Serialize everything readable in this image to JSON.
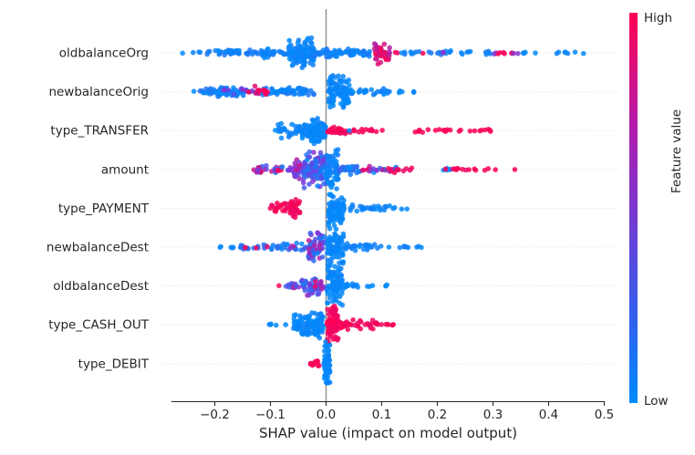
{
  "chart_data": {
    "type": "scatter",
    "subtype": "shap-beeswarm-summary",
    "title": "",
    "xlabel": "SHAP value (impact on model output)",
    "xticks": [
      -0.2,
      -0.1,
      0.0,
      0.1,
      0.2,
      0.3,
      0.4,
      0.5
    ],
    "xlim": [
      -0.28,
      0.5
    ],
    "zero_line_x": 0.0,
    "grid": "dotted horizontal per feature row",
    "legend_position": "colorbar right",
    "colorbar": {
      "label": "Feature value",
      "high_label": "High",
      "low_label": "Low",
      "high_color": "#ff0051",
      "low_color": "#008bfb",
      "mid_color": "#7b38de"
    },
    "style": {
      "axis_color": "#262626",
      "zero_line_color": "#8c8c8c",
      "gridline_color": "#dcdcdc",
      "dot_radius": 2.8,
      "dot_opacity": 0.85
    },
    "features": [
      {
        "name": "oldbalanceOrg",
        "clusters": [
          [
            -0.262,
            -0.255,
            1,
            0,
            0,
            1
          ],
          [
            -0.242,
            -0.224,
            3,
            0,
            0.05,
            2
          ],
          [
            -0.215,
            -0.068,
            55,
            0,
            0.12,
            4
          ],
          [
            -0.172,
            -0.148,
            8,
            0,
            0.08,
            6
          ],
          [
            -0.115,
            -0.095,
            8,
            0,
            0.08,
            6
          ],
          [
            -0.068,
            -0.022,
            110,
            0,
            0.08,
            17
          ],
          [
            -0.022,
            0.08,
            70,
            0,
            0.12,
            5
          ],
          [
            0.085,
            0.115,
            42,
            0.62,
            1,
            13
          ],
          [
            0.122,
            0.132,
            2,
            0.9,
            1,
            2
          ],
          [
            0.13,
            0.178,
            8,
            0,
            0.1,
            2.5
          ],
          [
            0.168,
            0.176,
            1,
            1,
            1,
            1
          ],
          [
            0.18,
            0.228,
            12,
            0,
            0.15,
            3.5
          ],
          [
            0.21,
            0.222,
            2,
            0.5,
            0.62,
            2
          ],
          [
            0.242,
            0.272,
            5,
            0,
            0.05,
            2
          ],
          [
            0.285,
            0.302,
            5,
            0,
            0.1,
            2
          ],
          [
            0.3,
            0.312,
            2,
            0.45,
            0.6,
            2
          ],
          [
            0.308,
            0.335,
            6,
            0.9,
            1,
            2
          ],
          [
            0.335,
            0.345,
            2,
            0.5,
            0.65,
            2
          ],
          [
            0.348,
            0.362,
            3,
            0,
            0.1,
            2
          ],
          [
            0.374,
            0.378,
            1,
            0,
            0,
            1
          ],
          [
            0.408,
            0.448,
            6,
            0,
            0.08,
            2
          ],
          [
            0.462,
            0.468,
            1,
            0,
            0,
            1
          ]
        ]
      },
      {
        "name": "newbalanceOrig",
        "clusters": [
          [
            -0.24,
            -0.235,
            1,
            0,
            0,
            1
          ],
          [
            -0.228,
            -0.02,
            85,
            0,
            0.15,
            5
          ],
          [
            -0.2,
            -0.15,
            25,
            0,
            0.1,
            6
          ],
          [
            -0.19,
            -0.13,
            8,
            0.35,
            0.6,
            4
          ],
          [
            -0.142,
            -0.135,
            1,
            1,
            1,
            1
          ],
          [
            -0.128,
            -0.105,
            13,
            0.85,
            1,
            7
          ],
          [
            -0.09,
            -0.04,
            20,
            0,
            0.1,
            6
          ],
          [
            0.004,
            0.042,
            95,
            0,
            0.06,
            20
          ],
          [
            0.04,
            0.118,
            28,
            0,
            0.08,
            4
          ],
          [
            0.126,
            0.142,
            3,
            0,
            0.05,
            2
          ],
          [
            0.155,
            0.172,
            2,
            0,
            0.05,
            1.5
          ]
        ]
      },
      {
        "name": "type_TRANSFER",
        "clusters": [
          [
            -0.097,
            -0.09,
            1,
            0,
            0,
            1
          ],
          [
            -0.087,
            -0.054,
            22,
            0,
            0.08,
            9
          ],
          [
            -0.05,
            -0.03,
            30,
            0,
            0.06,
            10
          ],
          [
            -0.028,
            -0.001,
            75,
            0,
            0.06,
            15
          ],
          [
            0.002,
            0.046,
            26,
            0.92,
            1,
            5
          ],
          [
            0.034,
            0.042,
            1,
            0,
            0,
            1
          ],
          [
            0.048,
            0.095,
            11,
            0.95,
            1,
            2.5
          ],
          [
            0.099,
            0.105,
            1,
            1,
            1,
            1
          ],
          [
            0.16,
            0.186,
            6,
            0.95,
            1,
            2.5
          ],
          [
            0.192,
            0.198,
            1,
            1,
            1,
            1
          ],
          [
            0.2,
            0.246,
            8,
            0.95,
            1,
            2
          ],
          [
            0.254,
            0.3,
            8,
            0.95,
            1,
            2
          ]
        ]
      },
      {
        "name": "amount",
        "clusters": [
          [
            -0.135,
            -0.128,
            1,
            0.7,
            0.8,
            1
          ],
          [
            -0.128,
            -0.06,
            32,
            0,
            1,
            5
          ],
          [
            -0.058,
            -0.04,
            28,
            0.35,
            0.8,
            13
          ],
          [
            -0.042,
            0.004,
            120,
            0,
            0.55,
            22
          ],
          [
            0.001,
            0.022,
            55,
            0,
            0.08,
            24
          ],
          [
            0.022,
            0.065,
            25,
            0,
            0.25,
            6
          ],
          [
            0.062,
            0.078,
            4,
            0.85,
            1,
            3
          ],
          [
            0.078,
            0.132,
            22,
            0,
            1,
            4
          ],
          [
            0.124,
            0.14,
            4,
            0.9,
            1,
            2
          ],
          [
            0.144,
            0.158,
            3,
            0.85,
            1,
            2
          ],
          [
            0.208,
            0.226,
            5,
            0,
            0.1,
            2
          ],
          [
            0.214,
            0.252,
            9,
            0.9,
            1,
            2
          ],
          [
            0.256,
            0.272,
            3,
            0.95,
            1,
            1.5
          ],
          [
            0.282,
            0.305,
            3,
            0.95,
            1,
            1.5
          ],
          [
            0.338,
            0.344,
            1,
            1,
            1,
            1
          ]
        ]
      },
      {
        "name": "type_PAYMENT",
        "clusters": [
          [
            -0.102,
            -0.068,
            20,
            0.92,
            1,
            6
          ],
          [
            -0.065,
            -0.047,
            30,
            0.9,
            1,
            13
          ],
          [
            0.004,
            0.032,
            90,
            0,
            0.05,
            20
          ],
          [
            0.032,
            0.115,
            28,
            0,
            0.08,
            4
          ],
          [
            0.12,
            0.152,
            4,
            0,
            0.05,
            1.5
          ]
        ]
      },
      {
        "name": "newbalanceDest",
        "clusters": [
          [
            -0.198,
            -0.185,
            2,
            0,
            0.05,
            1.5
          ],
          [
            -0.178,
            -0.162,
            3,
            0,
            0.05,
            1.5
          ],
          [
            -0.155,
            -0.032,
            40,
            0,
            0.3,
            5
          ],
          [
            -0.146,
            -0.14,
            1,
            1,
            1,
            1
          ],
          [
            -0.127,
            -0.12,
            1,
            0.95,
            1,
            1
          ],
          [
            -0.112,
            -0.105,
            1,
            0.9,
            1,
            1
          ],
          [
            -0.078,
            -0.058,
            3,
            0.5,
            0.8,
            2
          ],
          [
            -0.032,
            -0.002,
            65,
            0,
            0.75,
            19
          ],
          [
            0.002,
            0.032,
            85,
            0,
            0.06,
            22
          ],
          [
            0.032,
            0.1,
            24,
            0,
            0.1,
            4
          ],
          [
            0.105,
            0.148,
            6,
            0,
            0.08,
            2
          ],
          [
            0.158,
            0.178,
            3,
            0,
            0.05,
            1.5
          ]
        ]
      },
      {
        "name": "oldbalanceDest",
        "clusters": [
          [
            -0.085,
            -0.078,
            1,
            0.95,
            1,
            1
          ],
          [
            -0.075,
            -0.04,
            16,
            0.2,
            1,
            5
          ],
          [
            -0.045,
            -0.012,
            40,
            0,
            0.6,
            11
          ],
          [
            -0.022,
            -0.014,
            2,
            0.85,
            1,
            6
          ],
          [
            -0.012,
            -0.002,
            10,
            0.45,
            0.7,
            6
          ],
          [
            0.002,
            0.03,
            85,
            0,
            0.06,
            24
          ],
          [
            0.03,
            0.058,
            12,
            0,
            0.08,
            3
          ],
          [
            0.072,
            0.088,
            3,
            0,
            0.05,
            1.5
          ],
          [
            0.098,
            0.115,
            3,
            0,
            0.05,
            1.5
          ]
        ]
      },
      {
        "name": "type_CASH_OUT",
        "clusters": [
          [
            -0.11,
            -0.088,
            4,
            0,
            0.05,
            2
          ],
          [
            -0.078,
            -0.072,
            1,
            0,
            0,
            1
          ],
          [
            -0.06,
            -0.035,
            35,
            0,
            0.06,
            12
          ],
          [
            -0.035,
            -0.004,
            80,
            0,
            0.06,
            16
          ],
          [
            0.002,
            0.022,
            75,
            0.92,
            1,
            22
          ],
          [
            0.022,
            0.096,
            40,
            0.92,
            1,
            6
          ],
          [
            0.098,
            0.122,
            6,
            0.92,
            1,
            2
          ]
        ]
      },
      {
        "name": "type_DEBIT",
        "clusters": [
          [
            -0.028,
            -0.008,
            12,
            0.92,
            1,
            4
          ],
          [
            -0.004,
            0.007,
            60,
            0,
            0.05,
            26
          ]
        ]
      }
    ],
    "cluster_format": "[x_min, x_max, n_points, feature_value_t_min, feature_value_t_max, vertical_spread_px]"
  }
}
